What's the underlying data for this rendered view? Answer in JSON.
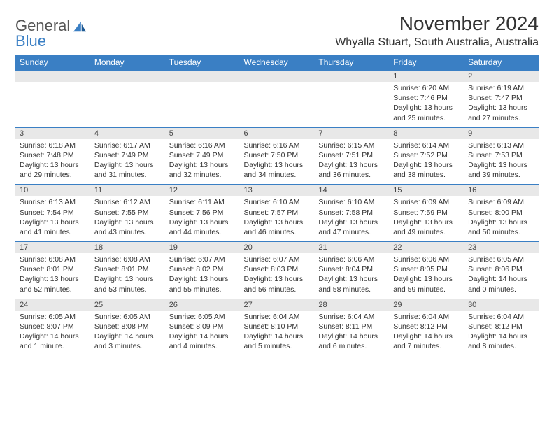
{
  "logo": {
    "general": "General",
    "blue": "Blue"
  },
  "title": "November 2024",
  "location": "Whyalla Stuart, South Australia, Australia",
  "colors": {
    "header_bg": "#3a7fc4",
    "header_text": "#ffffff",
    "daynum_bg": "#e8e8e8",
    "text": "#333333",
    "rule": "#3a7fc4",
    "page_bg": "#ffffff"
  },
  "weekdays": [
    "Sunday",
    "Monday",
    "Tuesday",
    "Wednesday",
    "Thursday",
    "Friday",
    "Saturday"
  ],
  "weeks": [
    [
      null,
      null,
      null,
      null,
      null,
      {
        "n": "1",
        "sr": "Sunrise: 6:20 AM",
        "ss": "Sunset: 7:46 PM",
        "dl": "Daylight: 13 hours and 25 minutes."
      },
      {
        "n": "2",
        "sr": "Sunrise: 6:19 AM",
        "ss": "Sunset: 7:47 PM",
        "dl": "Daylight: 13 hours and 27 minutes."
      }
    ],
    [
      {
        "n": "3",
        "sr": "Sunrise: 6:18 AM",
        "ss": "Sunset: 7:48 PM",
        "dl": "Daylight: 13 hours and 29 minutes."
      },
      {
        "n": "4",
        "sr": "Sunrise: 6:17 AM",
        "ss": "Sunset: 7:49 PM",
        "dl": "Daylight: 13 hours and 31 minutes."
      },
      {
        "n": "5",
        "sr": "Sunrise: 6:16 AM",
        "ss": "Sunset: 7:49 PM",
        "dl": "Daylight: 13 hours and 32 minutes."
      },
      {
        "n": "6",
        "sr": "Sunrise: 6:16 AM",
        "ss": "Sunset: 7:50 PM",
        "dl": "Daylight: 13 hours and 34 minutes."
      },
      {
        "n": "7",
        "sr": "Sunrise: 6:15 AM",
        "ss": "Sunset: 7:51 PM",
        "dl": "Daylight: 13 hours and 36 minutes."
      },
      {
        "n": "8",
        "sr": "Sunrise: 6:14 AM",
        "ss": "Sunset: 7:52 PM",
        "dl": "Daylight: 13 hours and 38 minutes."
      },
      {
        "n": "9",
        "sr": "Sunrise: 6:13 AM",
        "ss": "Sunset: 7:53 PM",
        "dl": "Daylight: 13 hours and 39 minutes."
      }
    ],
    [
      {
        "n": "10",
        "sr": "Sunrise: 6:13 AM",
        "ss": "Sunset: 7:54 PM",
        "dl": "Daylight: 13 hours and 41 minutes."
      },
      {
        "n": "11",
        "sr": "Sunrise: 6:12 AM",
        "ss": "Sunset: 7:55 PM",
        "dl": "Daylight: 13 hours and 43 minutes."
      },
      {
        "n": "12",
        "sr": "Sunrise: 6:11 AM",
        "ss": "Sunset: 7:56 PM",
        "dl": "Daylight: 13 hours and 44 minutes."
      },
      {
        "n": "13",
        "sr": "Sunrise: 6:10 AM",
        "ss": "Sunset: 7:57 PM",
        "dl": "Daylight: 13 hours and 46 minutes."
      },
      {
        "n": "14",
        "sr": "Sunrise: 6:10 AM",
        "ss": "Sunset: 7:58 PM",
        "dl": "Daylight: 13 hours and 47 minutes."
      },
      {
        "n": "15",
        "sr": "Sunrise: 6:09 AM",
        "ss": "Sunset: 7:59 PM",
        "dl": "Daylight: 13 hours and 49 minutes."
      },
      {
        "n": "16",
        "sr": "Sunrise: 6:09 AM",
        "ss": "Sunset: 8:00 PM",
        "dl": "Daylight: 13 hours and 50 minutes."
      }
    ],
    [
      {
        "n": "17",
        "sr": "Sunrise: 6:08 AM",
        "ss": "Sunset: 8:01 PM",
        "dl": "Daylight: 13 hours and 52 minutes."
      },
      {
        "n": "18",
        "sr": "Sunrise: 6:08 AM",
        "ss": "Sunset: 8:01 PM",
        "dl": "Daylight: 13 hours and 53 minutes."
      },
      {
        "n": "19",
        "sr": "Sunrise: 6:07 AM",
        "ss": "Sunset: 8:02 PM",
        "dl": "Daylight: 13 hours and 55 minutes."
      },
      {
        "n": "20",
        "sr": "Sunrise: 6:07 AM",
        "ss": "Sunset: 8:03 PM",
        "dl": "Daylight: 13 hours and 56 minutes."
      },
      {
        "n": "21",
        "sr": "Sunrise: 6:06 AM",
        "ss": "Sunset: 8:04 PM",
        "dl": "Daylight: 13 hours and 58 minutes."
      },
      {
        "n": "22",
        "sr": "Sunrise: 6:06 AM",
        "ss": "Sunset: 8:05 PM",
        "dl": "Daylight: 13 hours and 59 minutes."
      },
      {
        "n": "23",
        "sr": "Sunrise: 6:05 AM",
        "ss": "Sunset: 8:06 PM",
        "dl": "Daylight: 14 hours and 0 minutes."
      }
    ],
    [
      {
        "n": "24",
        "sr": "Sunrise: 6:05 AM",
        "ss": "Sunset: 8:07 PM",
        "dl": "Daylight: 14 hours and 1 minute."
      },
      {
        "n": "25",
        "sr": "Sunrise: 6:05 AM",
        "ss": "Sunset: 8:08 PM",
        "dl": "Daylight: 14 hours and 3 minutes."
      },
      {
        "n": "26",
        "sr": "Sunrise: 6:05 AM",
        "ss": "Sunset: 8:09 PM",
        "dl": "Daylight: 14 hours and 4 minutes."
      },
      {
        "n": "27",
        "sr": "Sunrise: 6:04 AM",
        "ss": "Sunset: 8:10 PM",
        "dl": "Daylight: 14 hours and 5 minutes."
      },
      {
        "n": "28",
        "sr": "Sunrise: 6:04 AM",
        "ss": "Sunset: 8:11 PM",
        "dl": "Daylight: 14 hours and 6 minutes."
      },
      {
        "n": "29",
        "sr": "Sunrise: 6:04 AM",
        "ss": "Sunset: 8:12 PM",
        "dl": "Daylight: 14 hours and 7 minutes."
      },
      {
        "n": "30",
        "sr": "Sunrise: 6:04 AM",
        "ss": "Sunset: 8:12 PM",
        "dl": "Daylight: 14 hours and 8 minutes."
      }
    ]
  ]
}
